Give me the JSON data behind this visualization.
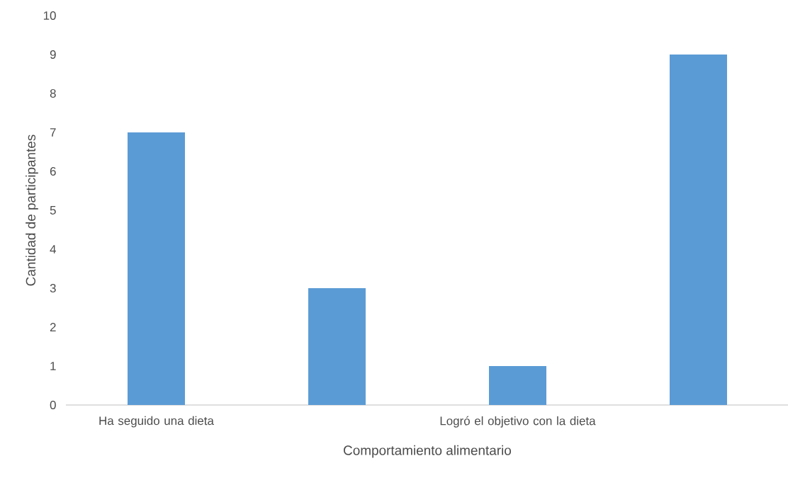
{
  "chart_data": {
    "type": "bar",
    "xlabel": "Comportamiento alimentario",
    "ylabel": "Cantidad de participantes",
    "categories": [
      "Ha seguido una dieta",
      null,
      "Logró el objetivo con la dieta",
      null
    ],
    "values": [
      7,
      3,
      1,
      9
    ],
    "color": "#5b9bd5",
    "ylim": [
      0,
      10
    ],
    "yticks": [
      0,
      1,
      2,
      3,
      4,
      5,
      6,
      7,
      8,
      9,
      10
    ]
  }
}
